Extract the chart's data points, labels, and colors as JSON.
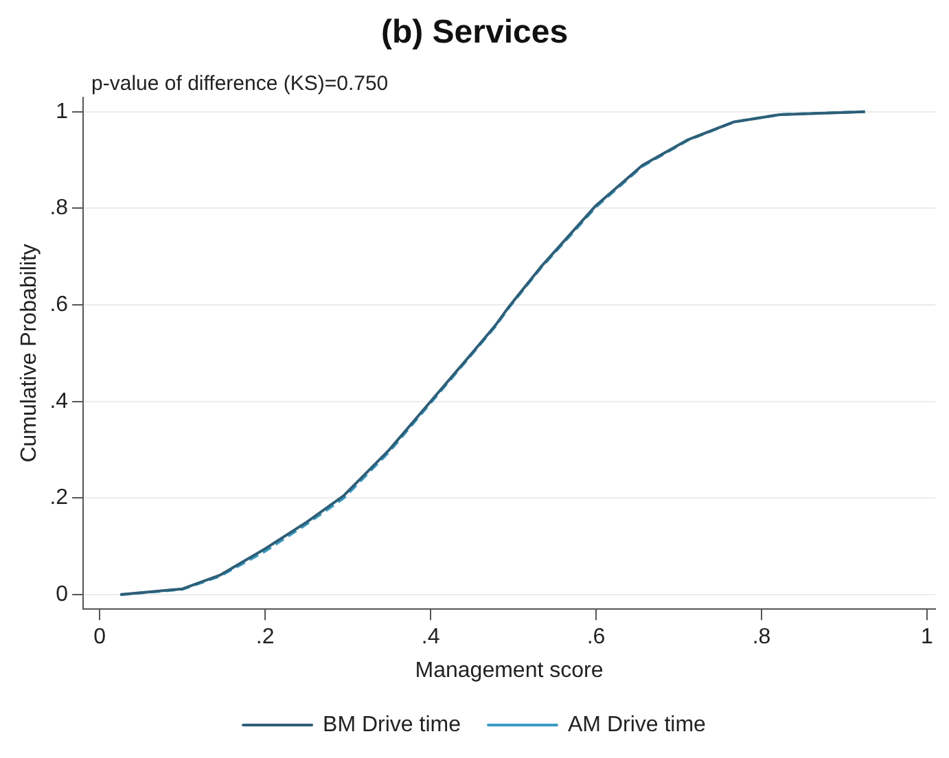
{
  "chart_data": {
    "type": "line",
    "title": "(b) Services",
    "xlabel": "Management score",
    "ylabel": "Cumulative Probability",
    "annotations": [
      "p-value of difference (KS)=0.750"
    ],
    "xlim": [
      -0.02,
      1.01
    ],
    "ylim": [
      -0.03,
      1.03
    ],
    "xticks": [
      0,
      {
        "value": 0.2,
        "label": ".2"
      },
      {
        "value": 0.4,
        "label": ".4"
      },
      {
        "value": 0.6,
        "label": ".6"
      },
      {
        "value": 0.8,
        "label": ".8"
      },
      1
    ],
    "yticks": [
      0,
      {
        "value": 0.2,
        "label": ".2"
      },
      {
        "value": 0.4,
        "label": ".4"
      },
      {
        "value": 0.6,
        "label": ".6"
      },
      {
        "value": 0.8,
        "label": ".8"
      },
      1
    ],
    "grid": "y",
    "legend": "bottom",
    "marker": "none",
    "series": [
      {
        "name": "BM Drive time",
        "color": "#2e5f78",
        "line_style": "solid",
        "x": [
          0.025,
          0.1,
          0.145,
          0.2,
          0.25,
          0.295,
          0.35,
          0.4,
          0.45,
          0.478,
          0.495,
          0.533,
          0.6,
          0.656,
          0.711,
          0.767,
          0.822,
          0.925
        ],
        "values": [
          0,
          0.012,
          0.04,
          0.095,
          0.15,
          0.205,
          0.3,
          0.4,
          0.5,
          0.557,
          0.597,
          0.678,
          0.806,
          0.889,
          0.942,
          0.979,
          0.994,
          1
        ]
      },
      {
        "name": "AM Drive time",
        "color": "#3b9cc4",
        "line_style": "dashed",
        "x": [
          0.025,
          0.1,
          0.145,
          0.2,
          0.25,
          0.295,
          0.35,
          0.4,
          0.45,
          0.478,
          0.495,
          0.533,
          0.6,
          0.656,
          0.711,
          0.767,
          0.822,
          0.925
        ],
        "values": [
          0,
          0.011,
          0.038,
          0.09,
          0.146,
          0.2,
          0.296,
          0.397,
          0.498,
          0.555,
          0.595,
          0.676,
          0.803,
          0.887,
          0.941,
          0.979,
          0.994,
          1
        ]
      }
    ]
  }
}
